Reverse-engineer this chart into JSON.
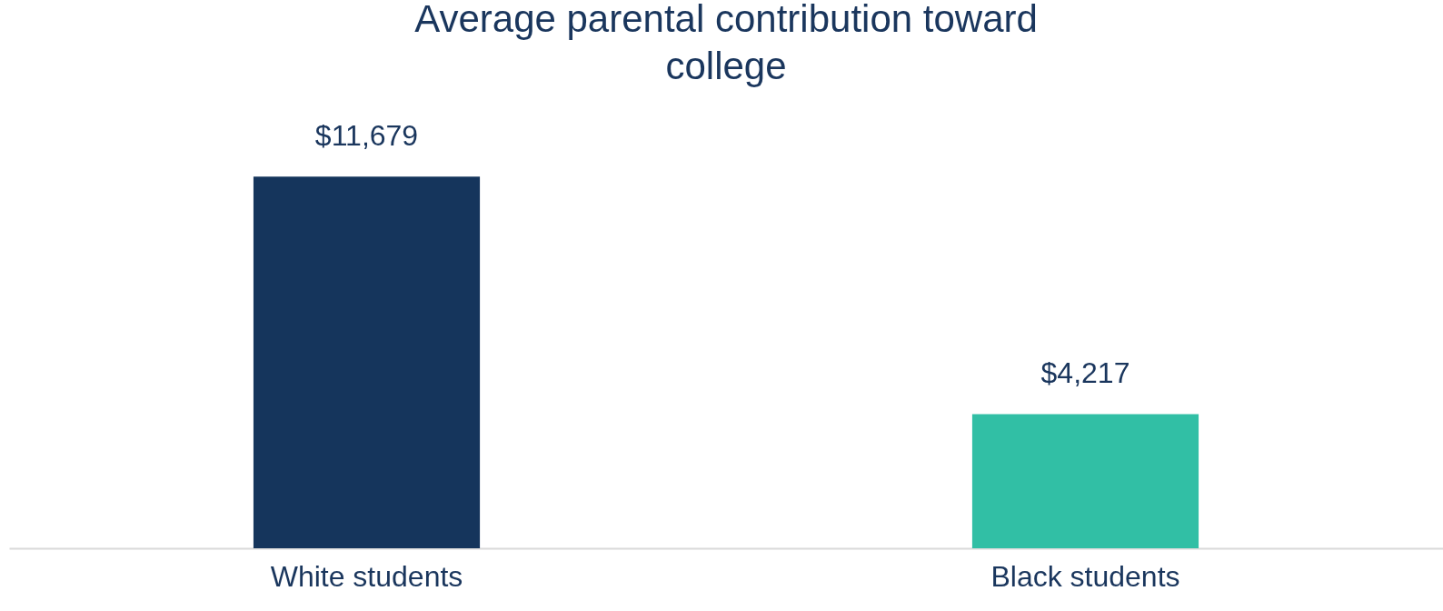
{
  "chart_data": {
    "type": "bar",
    "title": "Average parental contribution toward college",
    "categories": [
      "White students",
      "Black students"
    ],
    "values": [
      11679,
      4217
    ],
    "colors": [
      "#15355c",
      "#31bfa5"
    ],
    "value_labels": [
      "$11,679",
      "$4,217"
    ],
    "tick_labels": "x",
    "grid": false,
    "legend": false
  }
}
